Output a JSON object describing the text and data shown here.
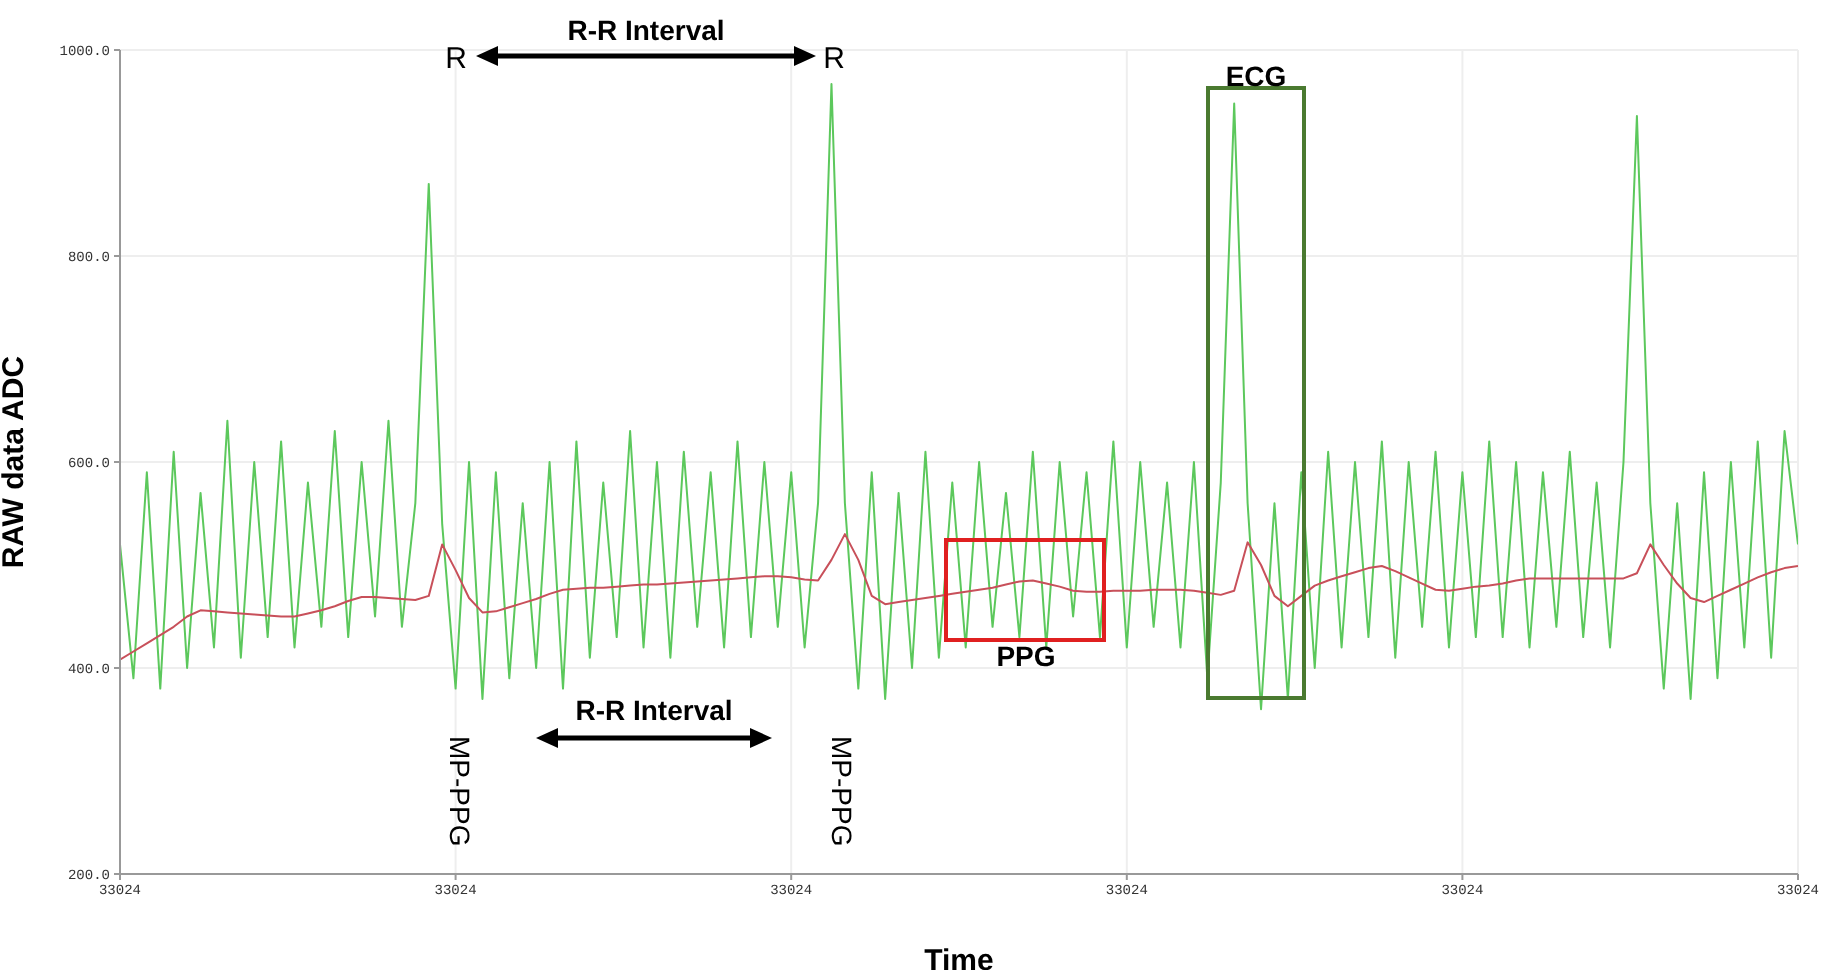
{
  "chart_data": {
    "type": "line",
    "xlabel": "Time",
    "ylabel": "RAW data ADC",
    "categories": [
      "33024",
      null,
      null,
      null,
      null,
      null,
      null,
      null,
      null,
      null,
      null,
      null,
      null,
      null,
      null,
      null,
      null,
      null,
      null,
      null,
      null,
      null,
      null,
      null,
      null,
      "33024",
      null,
      null,
      null,
      null,
      null,
      null,
      null,
      null,
      null,
      null,
      null,
      null,
      null,
      null,
      null,
      null,
      null,
      null,
      null,
      null,
      null,
      null,
      null,
      null,
      "33024",
      null,
      null,
      null,
      null,
      null,
      null,
      null,
      null,
      null,
      null,
      null,
      null,
      null,
      null,
      null,
      null,
      null,
      null,
      null,
      null,
      null,
      null,
      null,
      null,
      "33024",
      null,
      null,
      null,
      null,
      null,
      null,
      null,
      null,
      null,
      null,
      null,
      null,
      null,
      null,
      null,
      null,
      null,
      null,
      null,
      null,
      null,
      null,
      null,
      null,
      "33024",
      null,
      null,
      null,
      null,
      null,
      null,
      null,
      null,
      null,
      null,
      null,
      null,
      null,
      null,
      null,
      null,
      null,
      null,
      null,
      null,
      null,
      null,
      null,
      null,
      "33024"
    ],
    "ylim": [
      200,
      1000
    ],
    "yticks": [
      {
        "value": 200,
        "label": "200.0"
      },
      {
        "value": 400,
        "label": "400.0"
      },
      {
        "value": 600,
        "label": "600.0"
      },
      {
        "value": 800,
        "label": "800.0"
      },
      {
        "value": 1000,
        "label": "1000.0"
      }
    ],
    "grid": true,
    "series": [
      {
        "color": "#5cc85c",
        "values": [
          520,
          390,
          590,
          380,
          610,
          400,
          570,
          420,
          640,
          410,
          600,
          430,
          620,
          420,
          580,
          440,
          630,
          430,
          600,
          450,
          640,
          440,
          560,
          870,
          540,
          380,
          600,
          370,
          590,
          390,
          560,
          400,
          600,
          380,
          620,
          410,
          580,
          430,
          630,
          420,
          600,
          410,
          610,
          440,
          590,
          420,
          620,
          430,
          600,
          440,
          590,
          420,
          560,
          967,
          560,
          380,
          590,
          370,
          570,
          400,
          610,
          410,
          580,
          420,
          600,
          440,
          570,
          430,
          610,
          420,
          600,
          450,
          590,
          430,
          620,
          420,
          600,
          440,
          580,
          420,
          600,
          390,
          580,
          948,
          560,
          360,
          560,
          370,
          590,
          400,
          610,
          420,
          600,
          430,
          620,
          410,
          600,
          440,
          610,
          420,
          590,
          430,
          620,
          430,
          600,
          420,
          590,
          440,
          610,
          430,
          580,
          420,
          600,
          936,
          560,
          380,
          560,
          370,
          590,
          390,
          600,
          420,
          620,
          410,
          630,
          520
        ]
      },
      {
        "color": "#c8505a",
        "values": [
          408,
          416,
          424,
          432,
          440,
          450,
          456,
          455,
          454,
          453,
          452,
          451,
          450,
          450,
          453,
          456,
          460,
          465,
          469,
          469,
          468,
          467,
          466,
          470,
          520,
          495,
          468,
          454,
          455,
          459,
          463,
          467,
          472,
          476,
          477,
          478,
          478,
          479,
          480,
          481,
          481,
          482,
          483,
          484,
          485,
          486,
          487,
          488,
          489,
          489,
          488,
          486,
          485,
          505,
          530,
          505,
          470,
          462,
          464,
          466,
          468,
          470,
          472,
          474,
          476,
          478,
          481,
          484,
          485,
          482,
          479,
          475,
          474,
          474,
          475,
          475,
          475,
          476,
          476,
          476,
          475,
          473,
          471,
          475,
          522,
          500,
          470,
          460,
          470,
          480,
          485,
          489,
          493,
          497,
          499,
          494,
          488,
          482,
          476,
          475,
          477,
          479,
          480,
          482,
          485,
          487,
          487,
          487,
          487,
          487,
          487,
          487,
          487,
          492,
          520,
          500,
          482,
          468,
          464,
          470,
          476,
          482,
          488,
          493,
          497,
          499
        ]
      }
    ],
    "annotations": [
      "R",
      "R-R Interval",
      "R",
      "MP-PPG",
      "R-R Interval",
      "MP-PPG",
      "PPG",
      "ECG"
    ]
  }
}
